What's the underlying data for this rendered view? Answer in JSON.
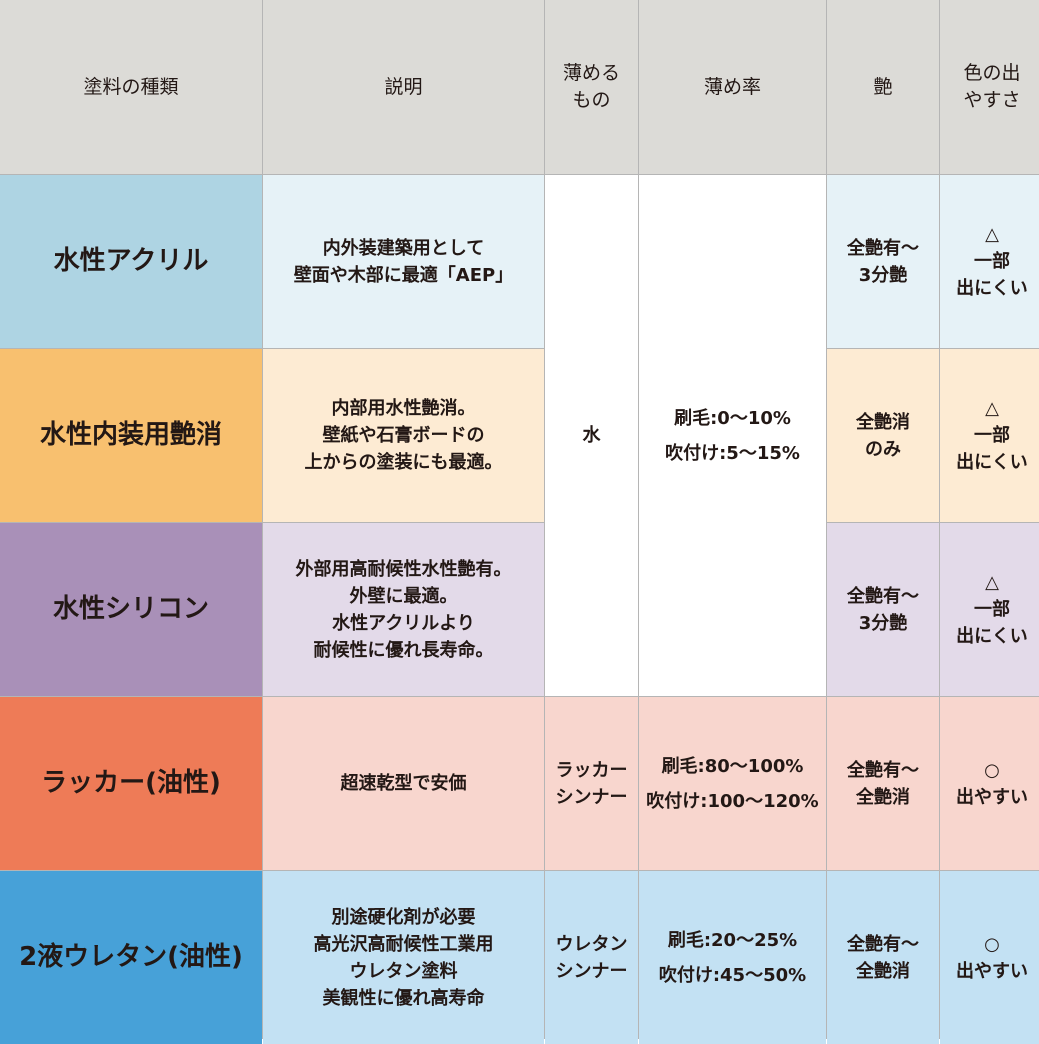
{
  "headers": [
    "塗料の種類",
    "説明",
    "薄める\nもの",
    "薄め率",
    "艶",
    "色の出\nやすさ"
  ],
  "colors": {
    "header": "#dcdbd7",
    "merged": "#ffffff"
  },
  "rows": [
    {
      "name": "水性アクリル",
      "desc": "内外装建築用として\n壁面や木部に最適「AEP」",
      "gloss": "全艶有〜\n3分艶",
      "color_ease": "△\n一部\n出にくい",
      "name_color": "#aed4e3",
      "cell_color": "#e6f2f7"
    },
    {
      "name": "水性内装用艶消",
      "desc": "内部用水性艶消。\n壁紙や石膏ボードの\n上からの塗装にも最適。",
      "gloss": "全艶消\nのみ",
      "color_ease": "△\n一部\n出にくい",
      "name_color": "#f8c06f",
      "cell_color": "#fdebd3"
    },
    {
      "name": "水性シリコン",
      "desc": "外部用高耐候性水性艶有。\n外壁に最適。\n水性アクリルより\n耐候性に優れ長寿命。",
      "gloss": "全艶有〜\n3分艶",
      "color_ease": "△\n一部\n出にくい",
      "name_color": "#a990b8",
      "cell_color": "#e3dae9"
    },
    {
      "name": "ラッカー(油性)",
      "desc": "超速乾型で安価",
      "thinner": "ラッカー\nシンナー",
      "ratio": [
        "刷毛:80〜100%",
        "吹付け:100〜120%"
      ],
      "gloss": "全艶有〜\n全艶消",
      "color_ease": "○\n出やすい",
      "name_color": "#ee7b57",
      "cell_color": "#f8d6ce"
    },
    {
      "name": "2液ウレタン(油性)",
      "desc": "別途硬化剤が必要\n高光沢高耐候性工業用\nウレタン塗料\n美観性に優れ高寿命",
      "thinner": "ウレタン\nシンナー",
      "ratio": [
        "刷毛:20〜25%",
        "吹付け:45〜50%"
      ],
      "gloss": "全艶有〜\n全艶消",
      "color_ease": "○\n出やすい",
      "name_color": "#47a1d8",
      "cell_color": "#c3e1f3"
    }
  ],
  "water_group": {
    "thinner": "水",
    "ratio": [
      "刷毛:0〜10%",
      "吹付け:5〜15%"
    ]
  }
}
